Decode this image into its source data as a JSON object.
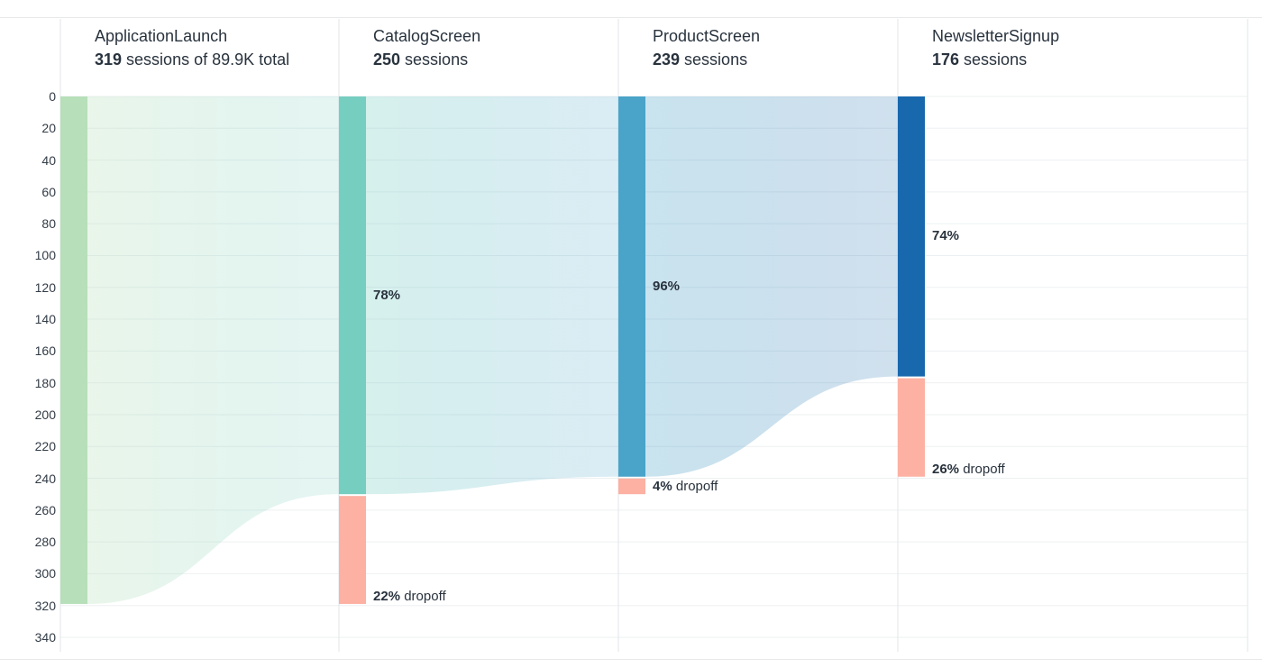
{
  "page": {
    "background": "#ffffff",
    "border_color": "#e7e9eb",
    "text_color": "#29333e"
  },
  "chart_data": {
    "type": "funnel",
    "title": "",
    "units": "sessions",
    "total_sessions_text": "89.9K",
    "y_axis": {
      "min": 0,
      "max": 340,
      "tick_step": 20,
      "ticks": [
        0,
        20,
        40,
        60,
        80,
        100,
        120,
        140,
        160,
        180,
        200,
        220,
        240,
        260,
        280,
        300,
        320,
        340
      ]
    },
    "steps": [
      {
        "name": "ApplicationLaunch",
        "sessions": 319,
        "sessions_bold": "319",
        "sessions_rest": " sessions of 89.9K total",
        "bar_color": "#b7dfb9",
        "conversion_label": "",
        "dropoff_label_bold": "",
        "dropoff_label_rest": ""
      },
      {
        "name": "CatalogScreen",
        "sessions": 250,
        "sessions_bold": "250",
        "sessions_rest": " sessions",
        "bar_color": "#76cec1",
        "conversion_label": "78%",
        "dropoff_label_bold": "22%",
        "dropoff_label_rest": " dropoff"
      },
      {
        "name": "ProductScreen",
        "sessions": 239,
        "sessions_bold": "239",
        "sessions_rest": " sessions",
        "bar_color": "#4aa3c9",
        "conversion_label": "96%",
        "dropoff_label_bold": "4%",
        "dropoff_label_rest": " dropoff"
      },
      {
        "name": "NewsletterSignup",
        "sessions": 176,
        "sessions_bold": "176",
        "sessions_rest": " sessions",
        "bar_color": "#1768ad",
        "conversion_label": "74%",
        "dropoff_label_bold": "26%",
        "dropoff_label_rest": " dropoff"
      }
    ],
    "colors": {
      "dropoff": "#fcb1a3",
      "grid_horizontal": "#edf0f2",
      "grid_vertical": "#e3e6e9",
      "flow_opacity_start": 0.3,
      "flow_opacity_end": 0.2
    }
  }
}
